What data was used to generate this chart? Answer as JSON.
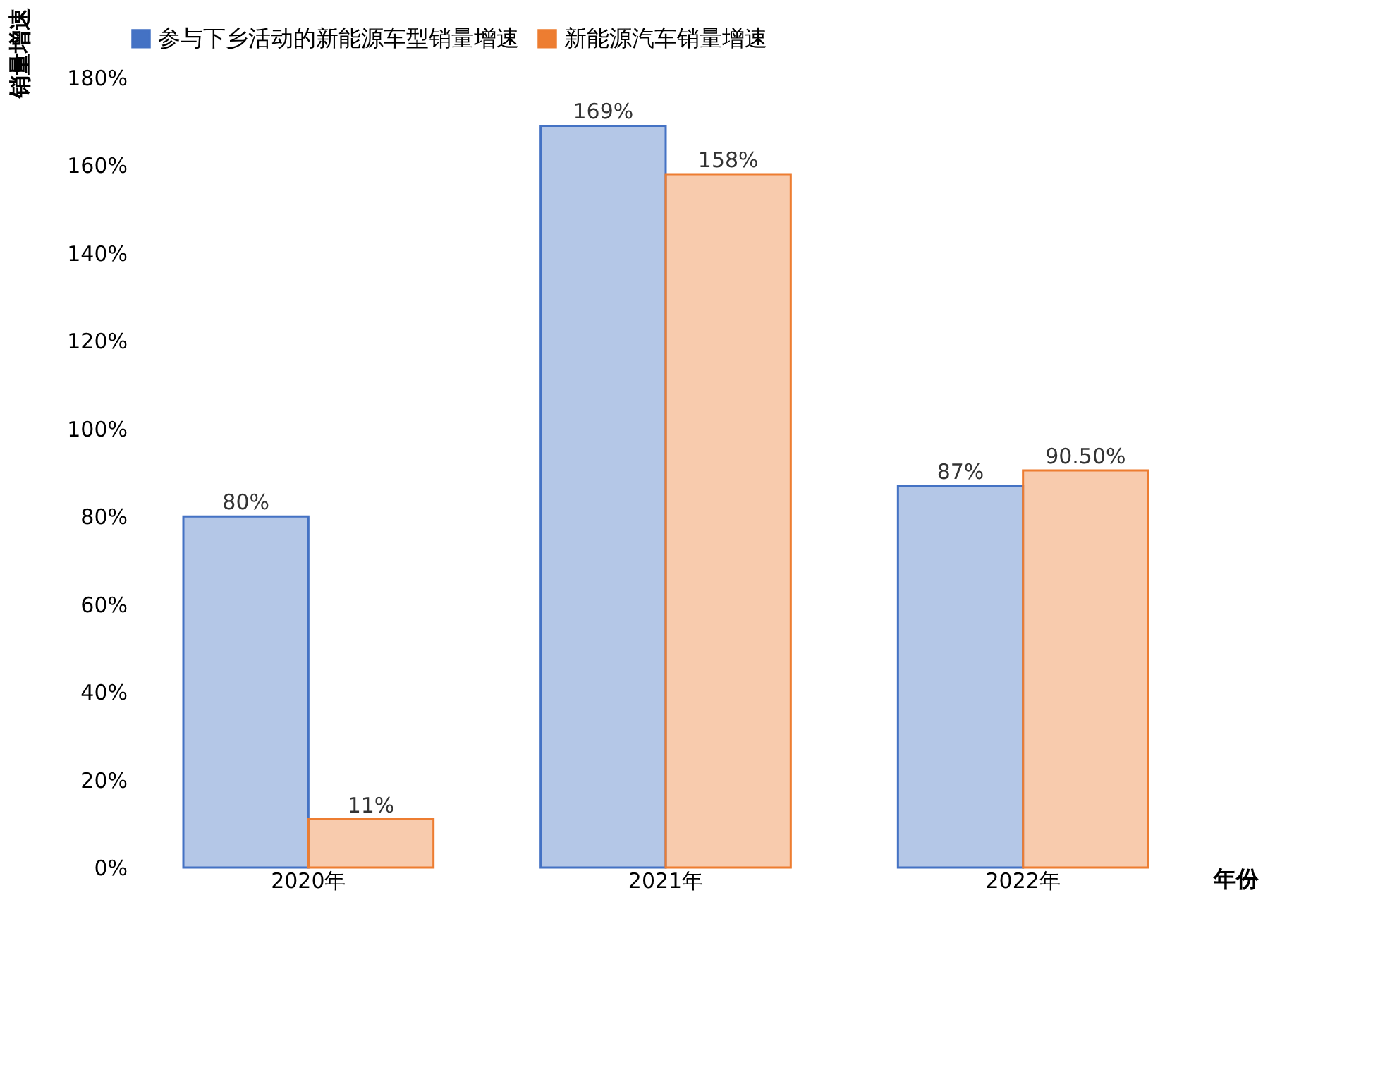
{
  "chart_data": {
    "type": "bar",
    "xlabel": "年份",
    "ylabel": "销量增速",
    "categories": [
      "2020年",
      "2021年",
      "2022年"
    ],
    "series": [
      {
        "name": "参与下乡活动的新能源车型销量增速",
        "color": "#4472c4",
        "values": [
          80,
          169,
          87
        ],
        "value_labels": [
          "80%",
          "169%",
          "87%"
        ]
      },
      {
        "name": "新能源汽车销量增速",
        "color": "#ed7d31",
        "values": [
          11,
          158,
          90.5
        ],
        "value_labels": [
          "11%",
          "158%",
          "90.50%"
        ]
      }
    ],
    "ylim": [
      0,
      180
    ],
    "yticks": [
      {
        "value": 0,
        "label": "0%"
      },
      {
        "value": 20,
        "label": "20%"
      },
      {
        "value": 40,
        "label": "40%"
      },
      {
        "value": 60,
        "label": "60%"
      },
      {
        "value": 80,
        "label": "80%"
      },
      {
        "value": 100,
        "label": "100%"
      },
      {
        "value": 120,
        "label": "120%"
      },
      {
        "value": 140,
        "label": "140%"
      },
      {
        "value": 160,
        "label": "160%"
      },
      {
        "value": 180,
        "label": "180%"
      }
    ],
    "legend": "top",
    "grid": false
  }
}
